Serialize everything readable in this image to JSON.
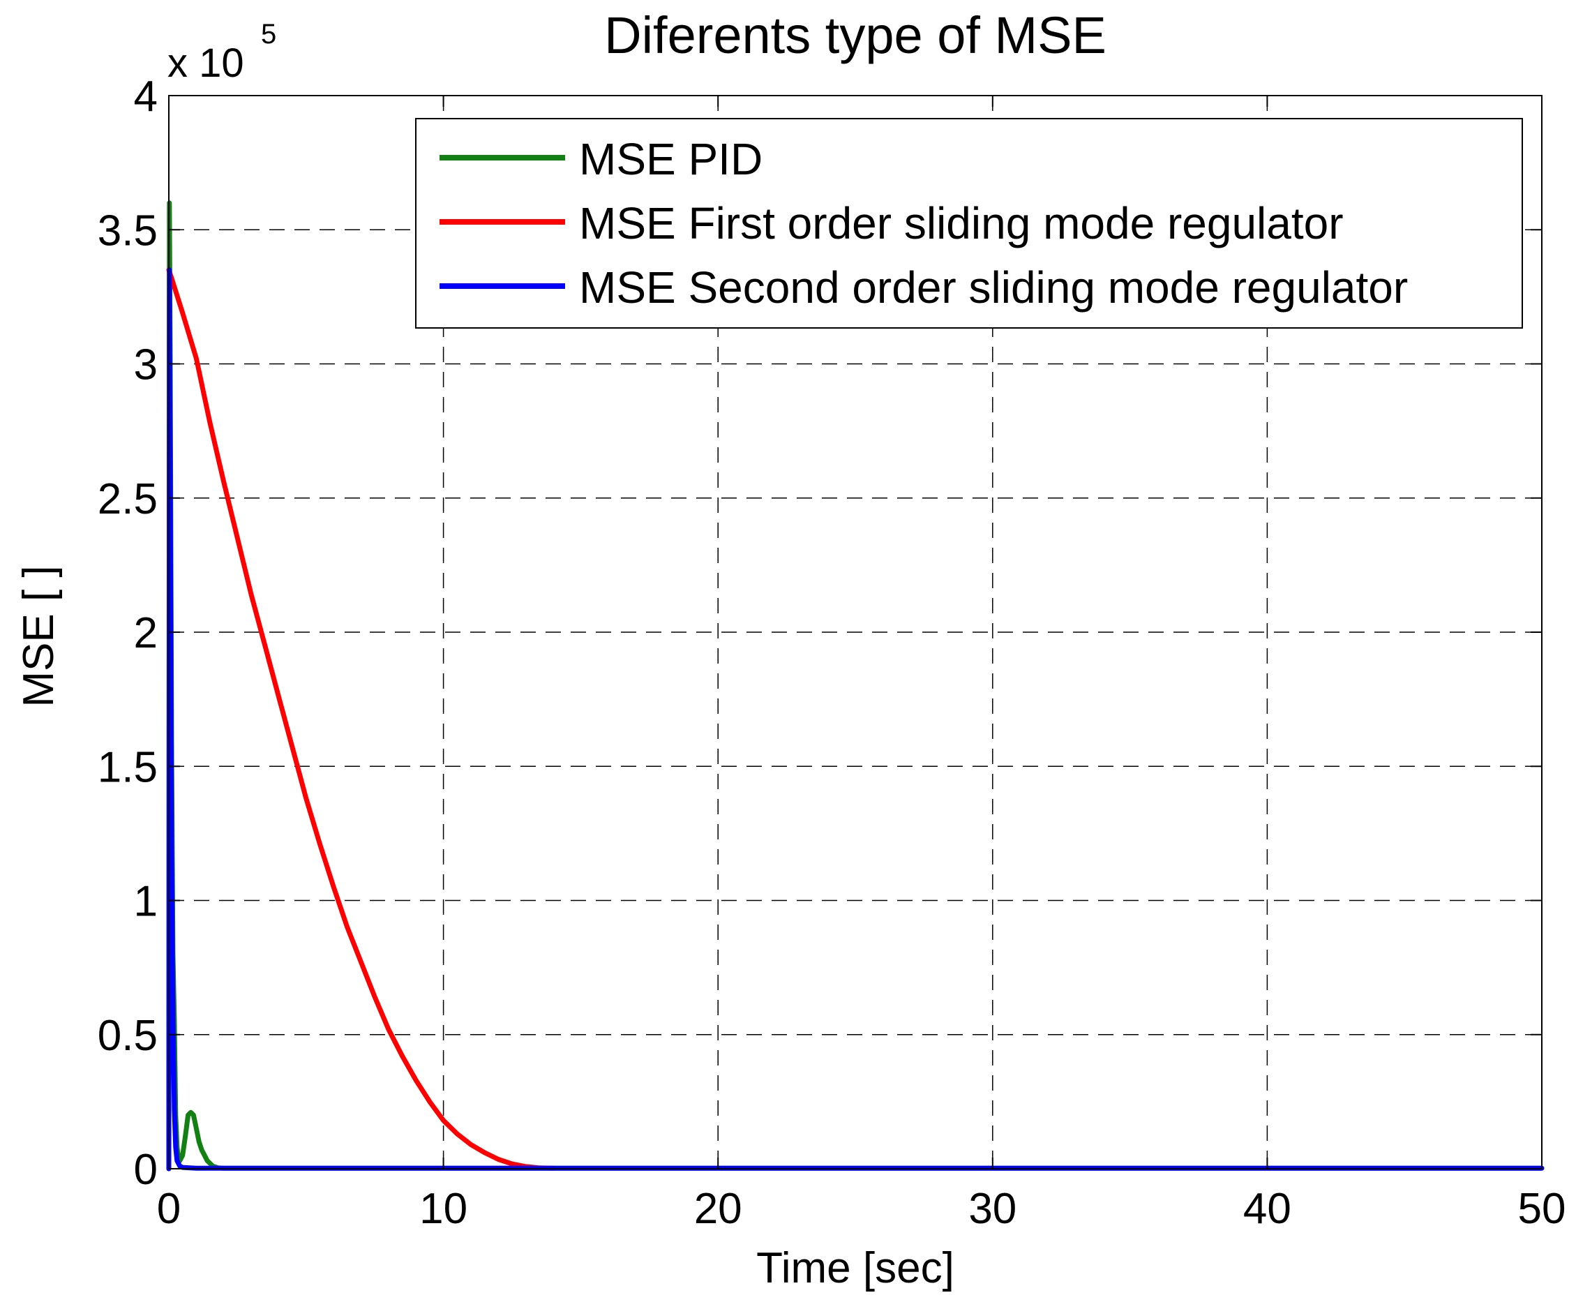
{
  "chart_data": {
    "type": "line",
    "title": "Diferents type of MSE",
    "xlabel": "Time [sec]",
    "ylabel": "MSE [ ]",
    "y_multiplier": "x 10",
    "y_multiplier_exponent": "5",
    "xlim": [
      0,
      50
    ],
    "ylim": [
      0,
      4
    ],
    "x_ticks": [
      0,
      10,
      20,
      30,
      40,
      50
    ],
    "x_tick_labels": [
      "0",
      "10",
      "20",
      "30",
      "40",
      "50"
    ],
    "y_ticks": [
      0,
      0.5,
      1,
      1.5,
      2,
      2.5,
      3,
      3.5,
      4
    ],
    "y_tick_labels": [
      "0",
      "0.5",
      "1",
      "1.5",
      "2",
      "2.5",
      "3",
      "3.5",
      "4"
    ],
    "grid": true,
    "legend_position": "top-right",
    "series": [
      {
        "name": "MSE PID",
        "color": "#138013",
        "x": [
          0,
          0.02,
          0.05,
          0.1,
          0.15,
          0.2,
          0.25,
          0.3,
          0.35,
          0.4,
          0.5,
          0.6,
          0.7,
          0.8,
          0.9,
          1.0,
          1.1,
          1.2,
          1.3,
          1.4,
          1.5,
          1.6,
          1.8,
          2,
          10,
          20,
          30,
          40,
          50
        ],
        "y": [
          0,
          3.6,
          3.0,
          1.6,
          0.8,
          0.55,
          0.2,
          0.08,
          0.04,
          0.03,
          0.05,
          0.12,
          0.2,
          0.21,
          0.2,
          0.15,
          0.1,
          0.07,
          0.05,
          0.03,
          0.02,
          0.01,
          0.003,
          0.002,
          0.002,
          0.002,
          0.002,
          0.002,
          0.002
        ]
      },
      {
        "name": "MSE First order sliding mode regulator",
        "color": "#ff0000",
        "x": [
          0,
          0.1,
          0.5,
          1,
          1.5,
          2,
          2.5,
          3,
          3.5,
          4,
          4.5,
          5,
          5.5,
          6,
          6.5,
          7,
          7.5,
          8,
          8.5,
          9,
          9.5,
          10,
          10.5,
          11,
          11.5,
          12,
          12.5,
          13,
          13.5,
          14
        ],
        "y": [
          3.35,
          3.32,
          3.19,
          3.02,
          2.78,
          2.56,
          2.35,
          2.14,
          1.95,
          1.76,
          1.57,
          1.38,
          1.21,
          1.05,
          0.9,
          0.77,
          0.64,
          0.52,
          0.42,
          0.33,
          0.25,
          0.18,
          0.13,
          0.09,
          0.06,
          0.035,
          0.018,
          0.008,
          0.003,
          0.002
        ]
      },
      {
        "name": "MSE Second order sliding mode regulator",
        "color": "#0000ff",
        "x": [
          0,
          0.02,
          0.05,
          0.08,
          0.1,
          0.15,
          0.2,
          0.25,
          0.3,
          0.4,
          0.5,
          1,
          5,
          10,
          20,
          30,
          40,
          50
        ],
        "y": [
          0,
          3.35,
          2.6,
          1.8,
          1.2,
          0.55,
          0.22,
          0.08,
          0.03,
          0.01,
          0.005,
          0.002,
          0.002,
          0.002,
          0.002,
          0.002,
          0.002,
          0.002
        ]
      }
    ]
  }
}
